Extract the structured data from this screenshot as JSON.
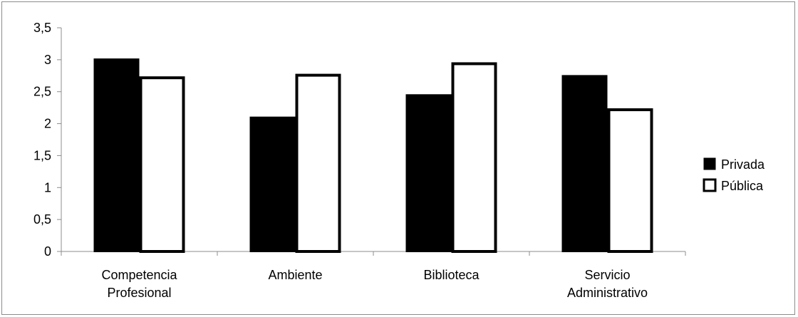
{
  "chart_data": {
    "type": "bar",
    "title": "",
    "xlabel": "",
    "ylabel": "",
    "categories": [
      [
        "Competencia",
        "Profesional"
      ],
      [
        "Ambiente"
      ],
      [
        "Biblioteca"
      ],
      [
        "Servicio",
        "Administrativo"
      ]
    ],
    "series": [
      {
        "name": "Privada",
        "values": [
          3.02,
          2.11,
          2.46,
          2.76
        ],
        "fill": "#000000",
        "stroke": "#000000"
      },
      {
        "name": "Pública",
        "values": [
          2.74,
          2.78,
          2.96,
          2.24
        ],
        "fill": "#ffffff",
        "stroke": "#000000"
      }
    ],
    "ylim": [
      0,
      3.5
    ],
    "yticks": [
      "0",
      "0,5",
      "1",
      "1,5",
      "2",
      "2,5",
      "3",
      "3,5"
    ],
    "grid": false,
    "legend_position": "right"
  }
}
